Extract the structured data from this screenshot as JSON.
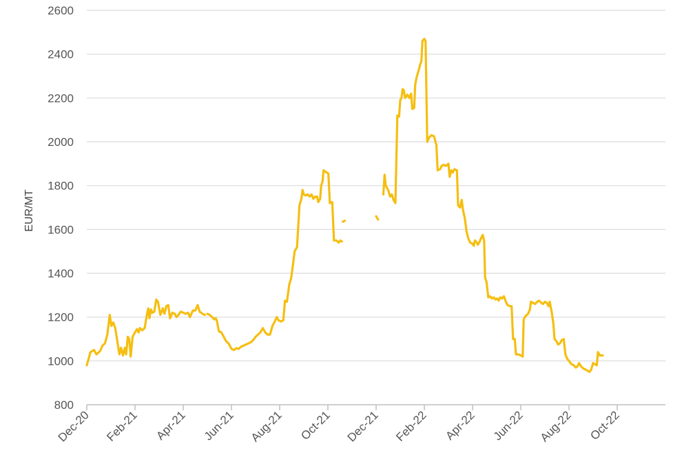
{
  "chart_data": {
    "type": "line",
    "title": "",
    "xlabel": "",
    "ylabel": "EUR/MT",
    "ylim": [
      800,
      2600
    ],
    "yticks": [
      800,
      1000,
      1200,
      1400,
      1600,
      1800,
      2000,
      2200,
      2400,
      2600
    ],
    "xticks": [
      "Dec-20",
      "Feb-21",
      "Apr-21",
      "Jun-21",
      "Aug-21",
      "Oct-21",
      "Dec-21",
      "Feb-22",
      "Apr-22",
      "Jun-22",
      "Aug-22",
      "Oct-22"
    ],
    "xlim": [
      0,
      24
    ],
    "grid": true,
    "line_color": "#F5BE10",
    "grid_color": "#D9D9D9",
    "series": [
      {
        "name": "",
        "segments": [
          [
            [
              0.0,
              980
            ],
            [
              0.15,
              1040
            ],
            [
              0.3,
              1050
            ],
            [
              0.4,
              1030
            ],
            [
              0.55,
              1045
            ],
            [
              0.65,
              1070
            ],
            [
              0.75,
              1080
            ],
            [
              0.85,
              1120
            ],
            [
              0.95,
              1210
            ],
            [
              1.02,
              1160
            ],
            [
              1.1,
              1175
            ],
            [
              1.18,
              1150
            ],
            [
              1.28,
              1080
            ],
            [
              1.35,
              1030
            ],
            [
              1.42,
              1060
            ],
            [
              1.5,
              1025
            ],
            [
              1.58,
              1060
            ],
            [
              1.63,
              1030
            ],
            [
              1.7,
              1110
            ],
            [
              1.76,
              1100
            ],
            [
              1.82,
              1020
            ],
            [
              1.9,
              1110
            ],
            [
              2.0,
              1130
            ],
            [
              2.08,
              1145
            ],
            [
              2.15,
              1130
            ],
            [
              2.2,
              1150
            ],
            [
              2.3,
              1140
            ],
            [
              2.4,
              1150
            ],
            [
              2.5,
              1215
            ],
            [
              2.55,
              1240
            ],
            [
              2.6,
              1195
            ],
            [
              2.66,
              1235
            ],
            [
              2.72,
              1220
            ],
            [
              2.8,
              1225
            ],
            [
              2.88,
              1280
            ],
            [
              2.95,
              1270
            ],
            [
              3.05,
              1210
            ],
            [
              3.15,
              1240
            ],
            [
              3.22,
              1215
            ],
            [
              3.3,
              1250
            ],
            [
              3.38,
              1255
            ],
            [
              3.45,
              1195
            ],
            [
              3.55,
              1220
            ],
            [
              3.65,
              1215
            ],
            [
              3.72,
              1200
            ],
            [
              3.8,
              1210
            ],
            [
              3.9,
              1225
            ],
            [
              4.0,
              1220
            ],
            [
              4.1,
              1215
            ],
            [
              4.2,
              1220
            ],
            [
              4.28,
              1200
            ],
            [
              4.4,
              1230
            ],
            [
              4.5,
              1230
            ],
            [
              4.6,
              1255
            ],
            [
              4.68,
              1225
            ],
            [
              4.8,
              1215
            ],
            [
              4.9,
              1210
            ]
          ],
          [
            [
              5.0,
              1215
            ],
            [
              5.1,
              1210
            ],
            [
              5.2,
              1200
            ],
            [
              5.28,
              1190
            ],
            [
              5.35,
              1195
            ],
            [
              5.4,
              1180
            ],
            [
              5.48,
              1135
            ],
            [
              5.58,
              1130
            ],
            [
              5.68,
              1110
            ],
            [
              5.78,
              1090
            ],
            [
              5.88,
              1080
            ],
            [
              6.0,
              1055
            ],
            [
              6.1,
              1050
            ],
            [
              6.2,
              1058
            ],
            [
              6.3,
              1055
            ],
            [
              6.4,
              1065
            ],
            [
              6.5,
              1070
            ],
            [
              6.6,
              1075
            ],
            [
              6.7,
              1080
            ],
            [
              6.8,
              1085
            ],
            [
              6.9,
              1095
            ],
            [
              7.0,
              1110
            ],
            [
              7.1,
              1120
            ],
            [
              7.2,
              1130
            ],
            [
              7.3,
              1150
            ],
            [
              7.4,
              1130
            ],
            [
              7.5,
              1120
            ],
            [
              7.6,
              1120
            ],
            [
              7.7,
              1160
            ],
            [
              7.8,
              1180
            ],
            [
              7.88,
              1200
            ],
            [
              7.95,
              1185
            ],
            [
              8.05,
              1180
            ],
            [
              8.15,
              1185
            ],
            [
              8.22,
              1275
            ],
            [
              8.3,
              1270
            ],
            [
              8.4,
              1350
            ],
            [
              8.48,
              1380
            ],
            [
              8.55,
              1440
            ],
            [
              8.62,
              1500
            ],
            [
              8.72,
              1520
            ],
            [
              8.82,
              1710
            ],
            [
              8.9,
              1740
            ],
            [
              8.95,
              1780
            ],
            [
              9.0,
              1760
            ],
            [
              9.08,
              1755
            ],
            [
              9.15,
              1760
            ],
            [
              9.25,
              1750
            ],
            [
              9.32,
              1760
            ],
            [
              9.4,
              1740
            ],
            [
              9.48,
              1750
            ],
            [
              9.55,
              1750
            ],
            [
              9.6,
              1725
            ],
            [
              9.68,
              1740
            ],
            [
              9.72,
              1800
            ],
            [
              9.78,
              1820
            ],
            [
              9.82,
              1870
            ],
            [
              9.88,
              1865
            ],
            [
              9.95,
              1860
            ],
            [
              10.02,
              1855
            ],
            [
              10.08,
              1720
            ],
            [
              10.18,
              1725
            ],
            [
              10.25,
              1550
            ],
            [
              10.35,
              1550
            ],
            [
              10.45,
              1540
            ],
            [
              10.52,
              1550
            ],
            [
              10.58,
              1545
            ]
          ],
          [
            [
              10.62,
              1635
            ],
            [
              10.7,
              1640
            ]
          ],
          [
            [
              12.0,
              1660
            ],
            [
              12.08,
              1645
            ]
          ],
          [
            [
              12.3,
              1760
            ],
            [
              12.35,
              1850
            ],
            [
              12.4,
              1800
            ],
            [
              12.5,
              1780
            ],
            [
              12.58,
              1750
            ],
            [
              12.65,
              1760
            ],
            [
              12.72,
              1735
            ],
            [
              12.8,
              1720
            ],
            [
              12.88,
              2120
            ],
            [
              12.95,
              2115
            ],
            [
              13.0,
              2190
            ],
            [
              13.05,
              2200
            ],
            [
              13.1,
              2240
            ],
            [
              13.15,
              2235
            ],
            [
              13.2,
              2200
            ],
            [
              13.3,
              2215
            ],
            [
              13.38,
              2200
            ],
            [
              13.45,
              2220
            ],
            [
              13.5,
              2150
            ],
            [
              13.58,
              2155
            ],
            [
              13.62,
              2260
            ],
            [
              13.68,
              2295
            ],
            [
              13.75,
              2320
            ],
            [
              13.82,
              2350
            ],
            [
              13.88,
              2370
            ],
            [
              13.92,
              2460
            ],
            [
              14.0,
              2470
            ],
            [
              14.05,
              2460
            ],
            [
              14.12,
              2000
            ],
            [
              14.2,
              2020
            ],
            [
              14.3,
              2030
            ],
            [
              14.4,
              2025
            ],
            [
              14.5,
              1985
            ],
            [
              14.55,
              1870
            ],
            [
              14.65,
              1875
            ],
            [
              14.72,
              1890
            ],
            [
              14.8,
              1895
            ],
            [
              14.9,
              1890
            ],
            [
              15.0,
              1900
            ],
            [
              15.05,
              1840
            ],
            [
              15.12,
              1870
            ],
            [
              15.18,
              1860
            ],
            [
              15.25,
              1875
            ],
            [
              15.35,
              1870
            ],
            [
              15.4,
              1710
            ],
            [
              15.48,
              1700
            ],
            [
              15.55,
              1735
            ],
            [
              15.6,
              1690
            ],
            [
              15.68,
              1650
            ],
            [
              15.75,
              1590
            ],
            [
              15.82,
              1560
            ],
            [
              15.9,
              1540
            ],
            [
              16.0,
              1535
            ],
            [
              16.05,
              1525
            ],
            [
              16.1,
              1550
            ],
            [
              16.18,
              1540
            ],
            [
              16.22,
              1530
            ],
            [
              16.3,
              1545
            ],
            [
              16.35,
              1560
            ],
            [
              16.42,
              1575
            ],
            [
              16.48,
              1550
            ],
            [
              16.52,
              1380
            ],
            [
              16.58,
              1360
            ],
            [
              16.65,
              1290
            ],
            [
              16.72,
              1295
            ],
            [
              16.8,
              1285
            ],
            [
              16.88,
              1290
            ],
            [
              16.95,
              1280
            ],
            [
              17.02,
              1285
            ],
            [
              17.08,
              1275
            ],
            [
              17.15,
              1290
            ],
            [
              17.22,
              1285
            ],
            [
              17.3,
              1295
            ],
            [
              17.38,
              1270
            ],
            [
              17.45,
              1255
            ],
            [
              17.55,
              1250
            ],
            [
              17.62,
              1250
            ],
            [
              17.68,
              1100
            ],
            [
              17.75,
              1100
            ],
            [
              17.8,
              1030
            ],
            [
              17.9,
              1030
            ],
            [
              18.0,
              1025
            ],
            [
              18.08,
              1020
            ],
            [
              18.12,
              1190
            ],
            [
              18.2,
              1205
            ],
            [
              18.3,
              1215
            ],
            [
              18.38,
              1235
            ],
            [
              18.42,
              1270
            ],
            [
              18.5,
              1265
            ],
            [
              18.6,
              1260
            ],
            [
              18.68,
              1270
            ],
            [
              18.75,
              1275
            ],
            [
              18.85,
              1265
            ],
            [
              18.92,
              1260
            ],
            [
              19.0,
              1270
            ],
            [
              19.08,
              1265
            ],
            [
              19.15,
              1250
            ],
            [
              19.2,
              1270
            ],
            [
              19.28,
              1225
            ],
            [
              19.35,
              1170
            ],
            [
              19.4,
              1100
            ],
            [
              19.48,
              1090
            ],
            [
              19.55,
              1075
            ],
            [
              19.62,
              1080
            ],
            [
              19.7,
              1095
            ],
            [
              19.78,
              1100
            ],
            [
              19.85,
              1030
            ],
            [
              19.92,
              1010
            ],
            [
              20.0,
              1000
            ],
            [
              20.1,
              985
            ],
            [
              20.2,
              980
            ],
            [
              20.28,
              970
            ],
            [
              20.35,
              975
            ],
            [
              20.42,
              990
            ],
            [
              20.5,
              975
            ],
            [
              20.6,
              965
            ],
            [
              20.7,
              960
            ],
            [
              20.78,
              955
            ],
            [
              20.85,
              950
            ],
            [
              20.92,
              960
            ],
            [
              21.0,
              990
            ],
            [
              21.08,
              985
            ],
            [
              21.15,
              980
            ],
            [
              21.2,
              1040
            ],
            [
              21.28,
              1025
            ],
            [
              21.4,
              1025
            ]
          ]
        ]
      }
    ]
  }
}
